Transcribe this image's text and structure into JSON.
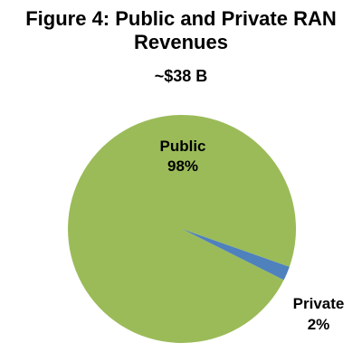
{
  "chart_data": {
    "type": "pie",
    "title_line1": "Figure 4: Public and Private RAN",
    "title_line2": "Revenues",
    "subtitle": "~$38 B",
    "slices": [
      {
        "label": "Public",
        "percent_label": "98%",
        "value": 98,
        "color": "#9BBB59"
      },
      {
        "label": "Private",
        "percent_label": "2%",
        "value": 2,
        "color": "#4F81BD"
      }
    ]
  }
}
